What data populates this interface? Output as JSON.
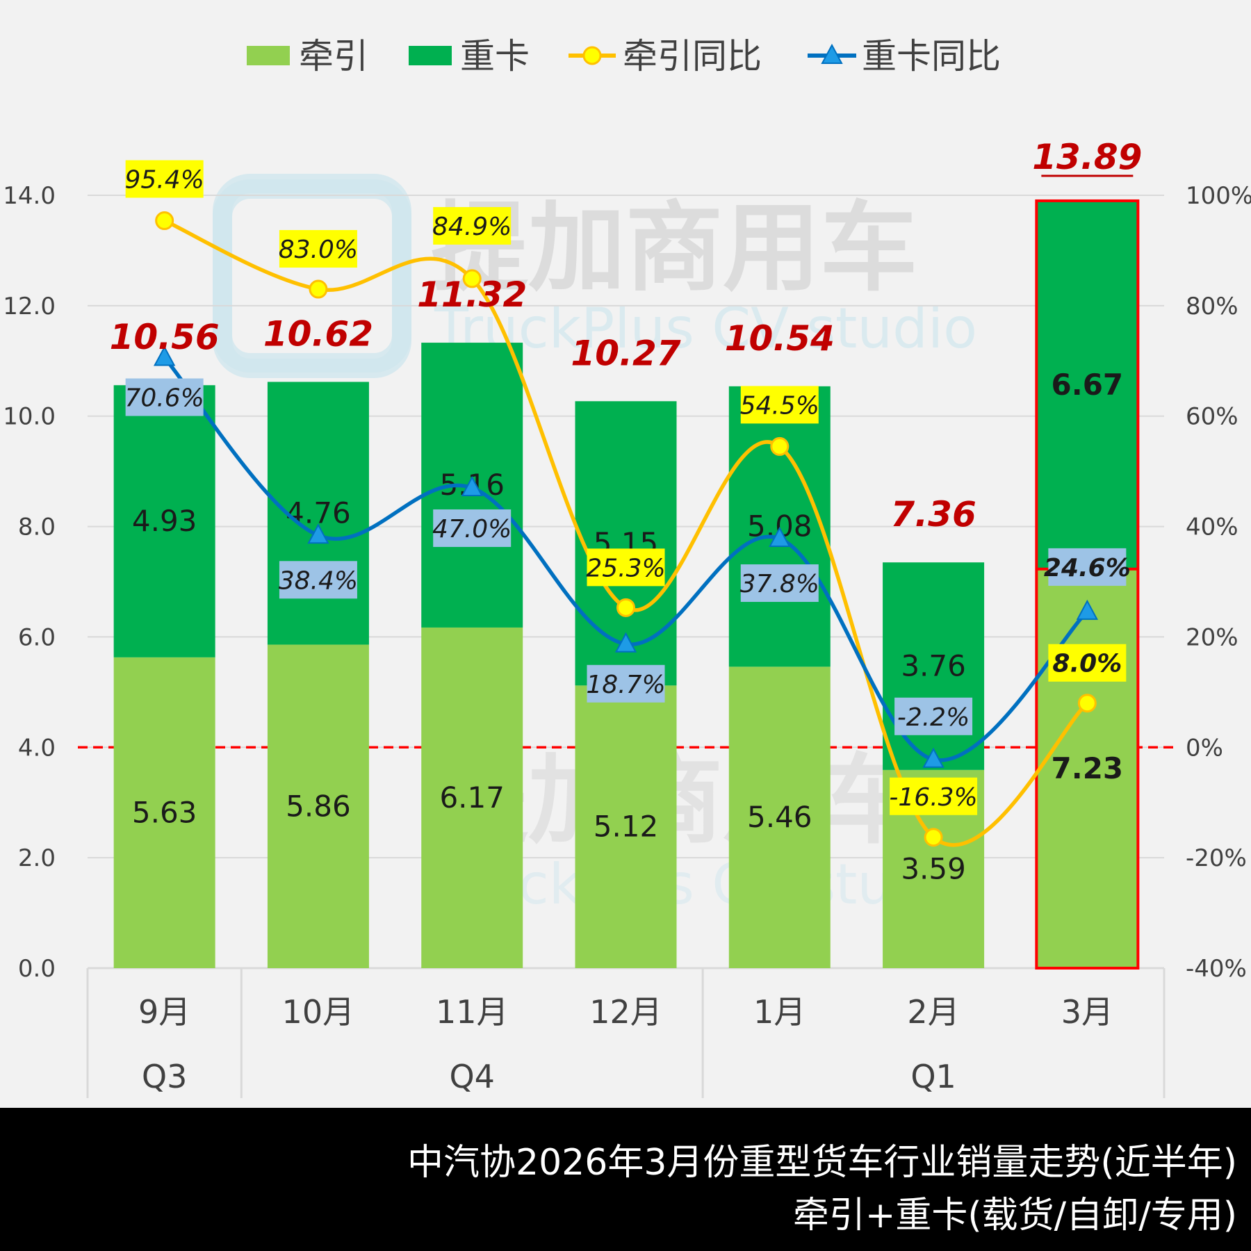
{
  "watermark": {
    "brand": "提加商用车",
    "brand_en": "TruckPlus CV studio"
  },
  "legend": {
    "traction": "牵引",
    "heavy": "重卡",
    "traction_yoy": "牵引同比",
    "heavy_yoy": "重卡同比"
  },
  "footer": {
    "line1": "中汽协2026年3月份重型货车行业销量走势(近半年)",
    "line2": "牵引+重卡(载货/自卸/专用)"
  },
  "colors": {
    "traction": "#92d050",
    "heavy": "#00b050",
    "traction_yoy": "#ffc000",
    "heavy_yoy": "#0070c0",
    "total_label": "#c00000",
    "highlight": "#ff0000",
    "yellow_box": "#ffff00",
    "blue_box": "#9dc3e6"
  },
  "chart_data": {
    "type": "bar",
    "stacked": true,
    "categories": [
      "9月",
      "10月",
      "11月",
      "12月",
      "1月",
      "2月",
      "3月"
    ],
    "quarters": [
      {
        "label": "Q3",
        "span": 1
      },
      {
        "label": "Q4",
        "span": 3
      },
      {
        "label": "Q1",
        "span": 3
      }
    ],
    "series": [
      {
        "name": "牵引",
        "axis": "left",
        "values": [
          5.63,
          5.86,
          6.17,
          5.12,
          5.46,
          3.59,
          7.23
        ],
        "labels": [
          "5.63",
          "5.86",
          "6.17",
          "5.12",
          "5.46",
          "3.59",
          "7.23"
        ]
      },
      {
        "name": "重卡",
        "axis": "left",
        "values": [
          4.93,
          4.76,
          5.16,
          5.15,
          5.08,
          3.76,
          6.67
        ],
        "labels": [
          "4.93",
          "4.76",
          "5.16",
          "5.15",
          "5.08",
          "3.76",
          "6.67"
        ]
      },
      {
        "name": "牵引同比",
        "type": "line",
        "axis": "right",
        "values": [
          95.4,
          83.0,
          84.9,
          25.3,
          54.5,
          -16.3,
          8.0
        ],
        "labels": [
          "95.4%",
          "83.0%",
          "84.9%",
          "25.3%",
          "54.5%",
          "-16.3%",
          "8.0%"
        ]
      },
      {
        "name": "重卡同比",
        "type": "line",
        "axis": "right",
        "values": [
          70.6,
          38.4,
          47.0,
          18.7,
          37.8,
          -2.2,
          24.6
        ],
        "labels": [
          "70.6%",
          "38.4%",
          "47.0%",
          "18.7%",
          "37.8%",
          "-2.2%",
          "24.6%"
        ]
      }
    ],
    "totals": [
      "10.56",
      "10.62",
      "11.32",
      "10.27",
      "10.54",
      "7.36",
      "13.89"
    ],
    "y_left": {
      "min": 0,
      "max": 14,
      "ticks": [
        "0.0",
        "2.0",
        "4.0",
        "6.0",
        "8.0",
        "10.0",
        "12.0",
        "14.0"
      ]
    },
    "y_right": {
      "min": -40,
      "max": 100,
      "ticks": [
        "-40%",
        "-20%",
        "0%",
        "20%",
        "40%",
        "60%",
        "80%",
        "100%"
      ]
    },
    "reference_line": {
      "axis": "right",
      "value": 0,
      "style": "dashed"
    },
    "highlight_category": 6,
    "grid": true,
    "legend_position": "top-center"
  }
}
